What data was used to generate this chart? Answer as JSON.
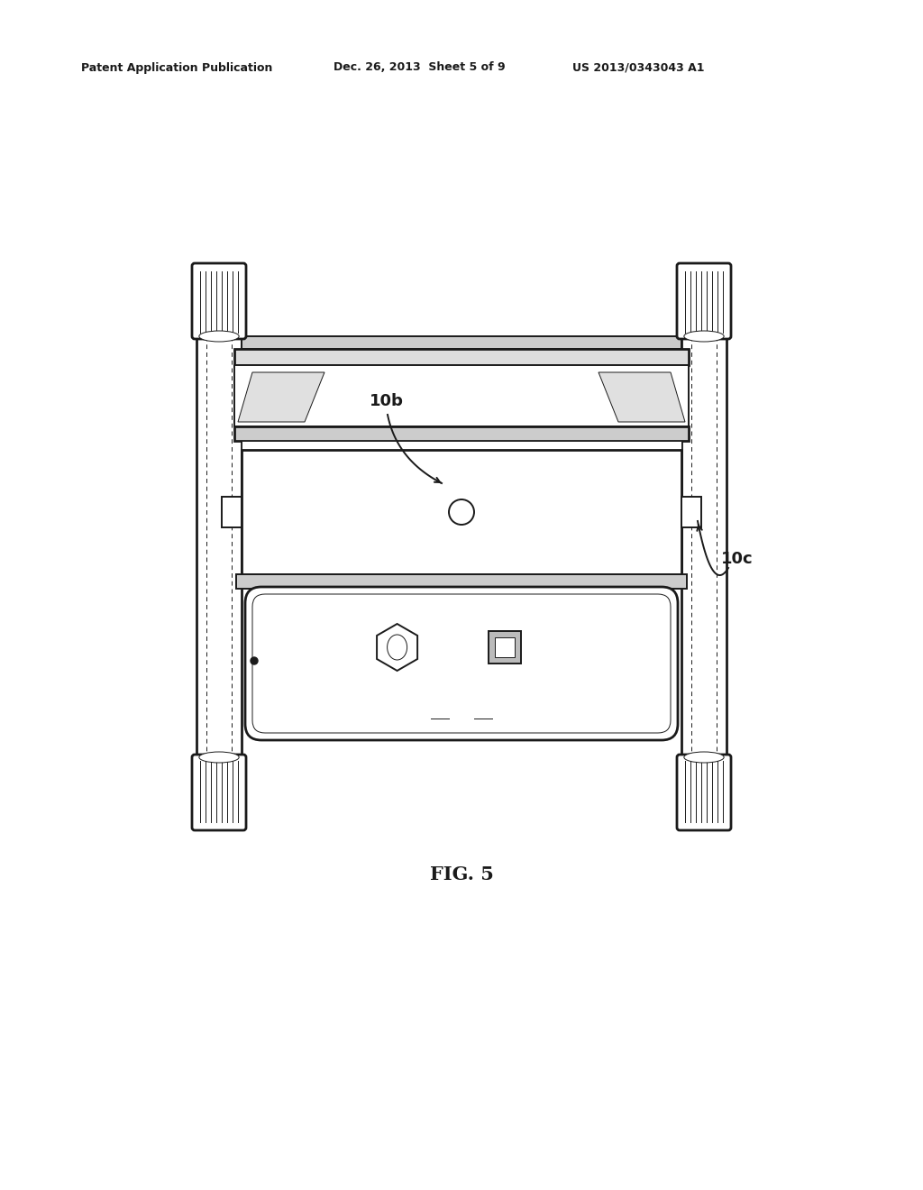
{
  "bg_color": "#ffffff",
  "line_color": "#1a1a1a",
  "header_left": "Patent Application Publication",
  "header_center": "Dec. 26, 2013  Sheet 5 of 9",
  "header_right": "US 2013/0343043 A1",
  "fig_label": "FIG. 5",
  "label_10b": "10b",
  "label_10c": "10c",
  "lw": 1.4,
  "lw_thin": 0.7,
  "lw_thick": 2.0
}
